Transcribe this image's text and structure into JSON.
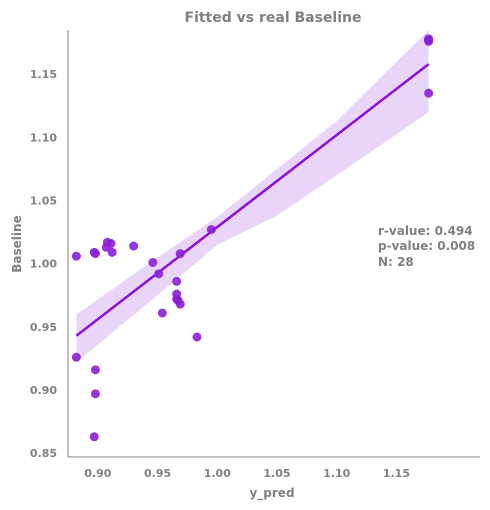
{
  "chart_data": {
    "type": "scatter",
    "title": "Fitted vs real Baseline",
    "xlabel": "y_pred",
    "ylabel": "Baseline",
    "xlim": [
      0.875,
      1.22
    ],
    "ylim": [
      0.847,
      1.185
    ],
    "xticks": [
      "0.90",
      "0.95",
      "1.00",
      "1.05",
      "1.10",
      "1.15"
    ],
    "yticks": [
      "0.85",
      "0.90",
      "0.95",
      "1.00",
      "1.05",
      "1.10",
      "1.15"
    ],
    "grid": false,
    "points": [
      {
        "x": 0.882,
        "y": 1.006
      },
      {
        "x": 0.882,
        "y": 0.926
      },
      {
        "x": 0.897,
        "y": 1.009
      },
      {
        "x": 0.898,
        "y": 1.008
      },
      {
        "x": 0.898,
        "y": 0.916
      },
      {
        "x": 0.898,
        "y": 0.897
      },
      {
        "x": 0.897,
        "y": 0.863
      },
      {
        "x": 0.907,
        "y": 1.013
      },
      {
        "x": 0.908,
        "y": 1.017
      },
      {
        "x": 0.911,
        "y": 1.016
      },
      {
        "x": 0.912,
        "y": 1.009
      },
      {
        "x": 0.93,
        "y": 1.014
      },
      {
        "x": 0.946,
        "y": 1.001
      },
      {
        "x": 0.951,
        "y": 0.992
      },
      {
        "x": 0.954,
        "y": 0.961
      },
      {
        "x": 0.966,
        "y": 0.986
      },
      {
        "x": 0.966,
        "y": 0.976
      },
      {
        "x": 0.966,
        "y": 0.972
      },
      {
        "x": 0.967,
        "y": 0.971
      },
      {
        "x": 0.969,
        "y": 1.008
      },
      {
        "x": 0.969,
        "y": 0.968
      },
      {
        "x": 0.983,
        "y": 0.942
      },
      {
        "x": 0.995,
        "y": 1.027
      },
      {
        "x": 1.177,
        "y": 1.178
      },
      {
        "x": 1.177,
        "y": 1.177
      },
      {
        "x": 1.177,
        "y": 1.177
      },
      {
        "x": 1.177,
        "y": 1.176
      },
      {
        "x": 1.177,
        "y": 1.135
      }
    ],
    "fit": {
      "x": [
        0.882,
        1.177
      ],
      "y": [
        0.943,
        1.158
      ]
    },
    "ci_band": {
      "x": [
        0.882,
        0.95,
        1.0,
        1.05,
        1.1,
        1.177
      ],
      "upper": [
        0.96,
        1.005,
        1.037,
        1.075,
        1.113,
        1.185
      ],
      "lower": [
        0.922,
        0.975,
        1.015,
        1.038,
        1.07,
        1.12
      ]
    },
    "stats": [
      "r-value: 0.494",
      "p-value: 0.008",
      "N: 28"
    ],
    "colors": {
      "points": "#8B1FD6",
      "line": "#8B10D9",
      "band": "#E8D5F7",
      "text": "#808080",
      "axis": "#808080"
    }
  }
}
